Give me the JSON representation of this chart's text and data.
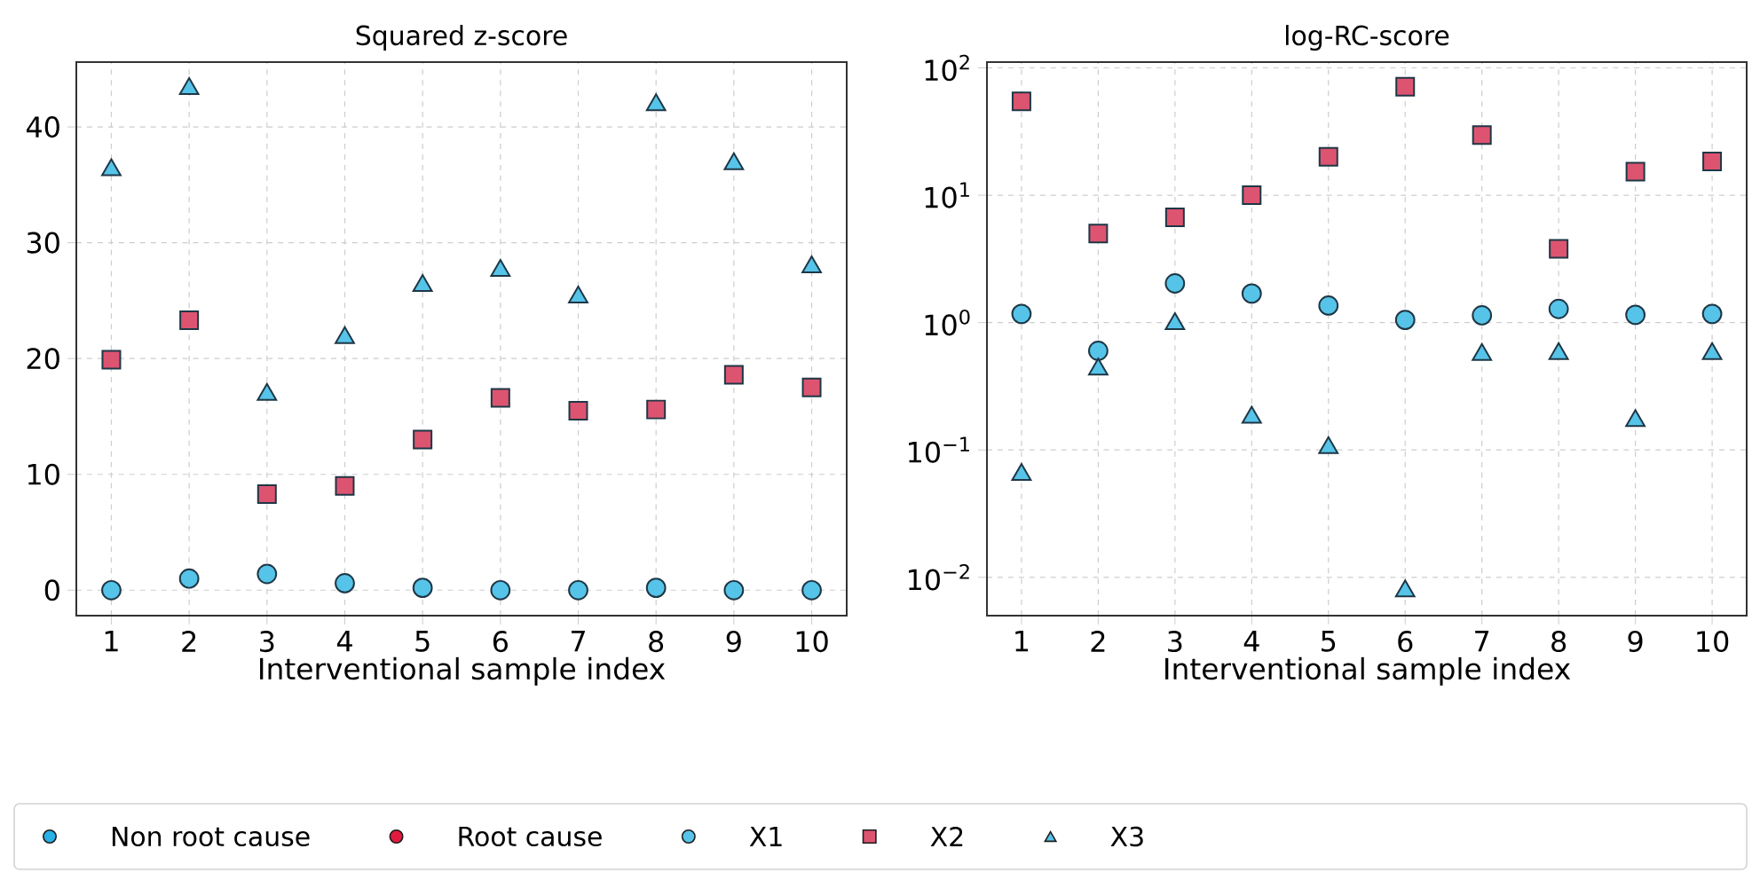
{
  "chart_data": [
    {
      "type": "scatter",
      "title": "Squared z-score",
      "xlabel": "Interventional sample index",
      "x": [
        1,
        2,
        3,
        4,
        5,
        6,
        7,
        8,
        9,
        10
      ],
      "xlim": [
        0.55,
        10.45
      ],
      "xticks": [
        1,
        2,
        3,
        4,
        5,
        6,
        7,
        8,
        9,
        10
      ],
      "ylim": [
        -2.2,
        45.6
      ],
      "yticks": [
        0,
        10,
        20,
        30,
        40
      ],
      "grid": true,
      "legend": "bottom",
      "series": [
        {
          "name": "Non root cause",
          "color": "#29b0e4",
          "marker": "circle",
          "values": [
            null,
            null,
            null,
            null,
            null,
            null,
            null,
            null,
            null,
            null
          ]
        },
        {
          "name": "Root cause",
          "color": "#e31a40",
          "marker": "circle",
          "values": [
            null,
            null,
            null,
            null,
            null,
            null,
            null,
            null,
            null,
            null
          ]
        },
        {
          "name": "X1",
          "color": "#56c4e8",
          "marker": "circle",
          "values": [
            0,
            1.0,
            1.4,
            0.6,
            0.2,
            0,
            0,
            0.2,
            0,
            0
          ]
        },
        {
          "name": "X2",
          "color": "#dd5470",
          "marker": "square",
          "values": [
            19.9,
            23.3,
            8.3,
            9.0,
            13.0,
            16.6,
            15.5,
            15.6,
            18.6,
            17.5
          ]
        },
        {
          "name": "X3",
          "color": "#56c4e8",
          "marker": "triangle",
          "values": [
            36.3,
            43.3,
            16.9,
            21.8,
            26.3,
            27.6,
            25.3,
            41.9,
            36.8,
            27.9
          ]
        }
      ]
    },
    {
      "type": "scatter",
      "title": "log-RC-score",
      "xlabel": "Interventional sample index",
      "x": [
        1,
        2,
        3,
        4,
        5,
        6,
        7,
        8,
        9,
        10
      ],
      "xlim": [
        0.55,
        10.45
      ],
      "xticks": [
        1,
        2,
        3,
        4,
        5,
        6,
        7,
        8,
        9,
        10
      ],
      "log": "y",
      "ylim": [
        0.005,
        111
      ],
      "yticks": [
        {
          "value": 0.01,
          "label": "10$^{−2}$"
        },
        {
          "value": 0.1,
          "label": "10$^{−1}$"
        },
        {
          "value": 1,
          "label": "10$^{0}$"
        },
        {
          "value": 10,
          "label": "10$^{1}$"
        },
        {
          "value": 100,
          "label": "10$^{2}$"
        }
      ],
      "grid": true,
      "series": [
        {
          "color": "#56c4e8",
          "marker": "circle",
          "values": [
            1.17,
            0.6,
            2.03,
            1.69,
            1.36,
            1.05,
            1.14,
            1.28,
            1.15,
            1.17
          ]
        },
        {
          "color": "#dd5470",
          "marker": "square",
          "values": [
            54.6,
            5.0,
            6.7,
            10,
            20,
            71,
            29.7,
            3.8,
            15.3,
            18.4
          ]
        },
        {
          "color": "#56c4e8",
          "marker": "triangle",
          "values": [
            0.064,
            0.43,
            0.98,
            0.18,
            0.104,
            0.0078,
            0.56,
            0.57,
            0.17,
            0.57
          ]
        }
      ]
    }
  ]
}
